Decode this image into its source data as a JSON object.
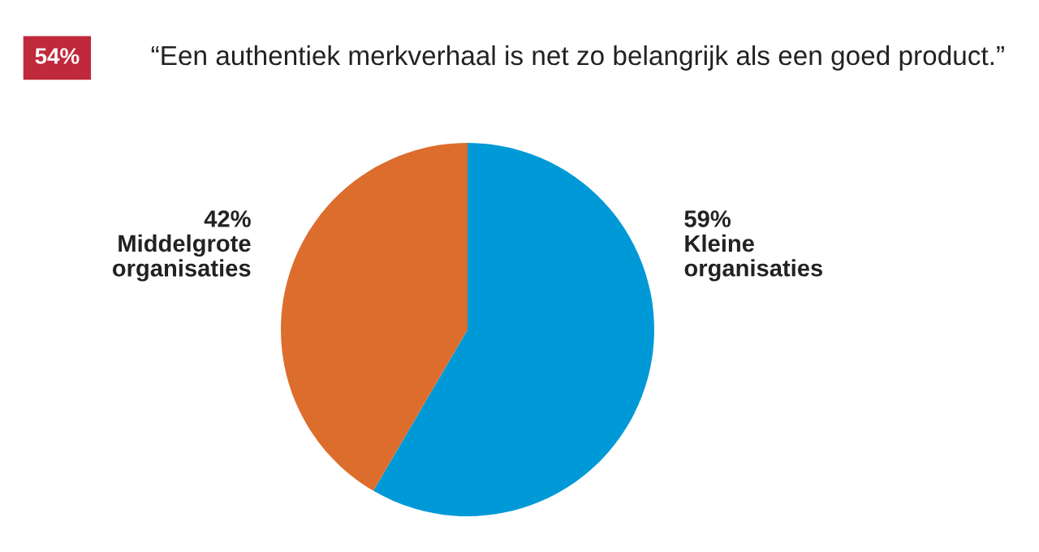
{
  "chart_data": {
    "type": "pie",
    "title": "“Een authentiek merkverhaal is net zo belangrijk als een goed product.”",
    "annotations": [
      "54%"
    ],
    "categories": [
      "Kleine\norganisaties",
      "Middelgrote\norganisaties"
    ],
    "values": [
      59,
      42
    ],
    "value_labels": [
      "59%",
      "42%"
    ],
    "colors": [
      "#0099d8",
      "#dc6d2c"
    ]
  }
}
